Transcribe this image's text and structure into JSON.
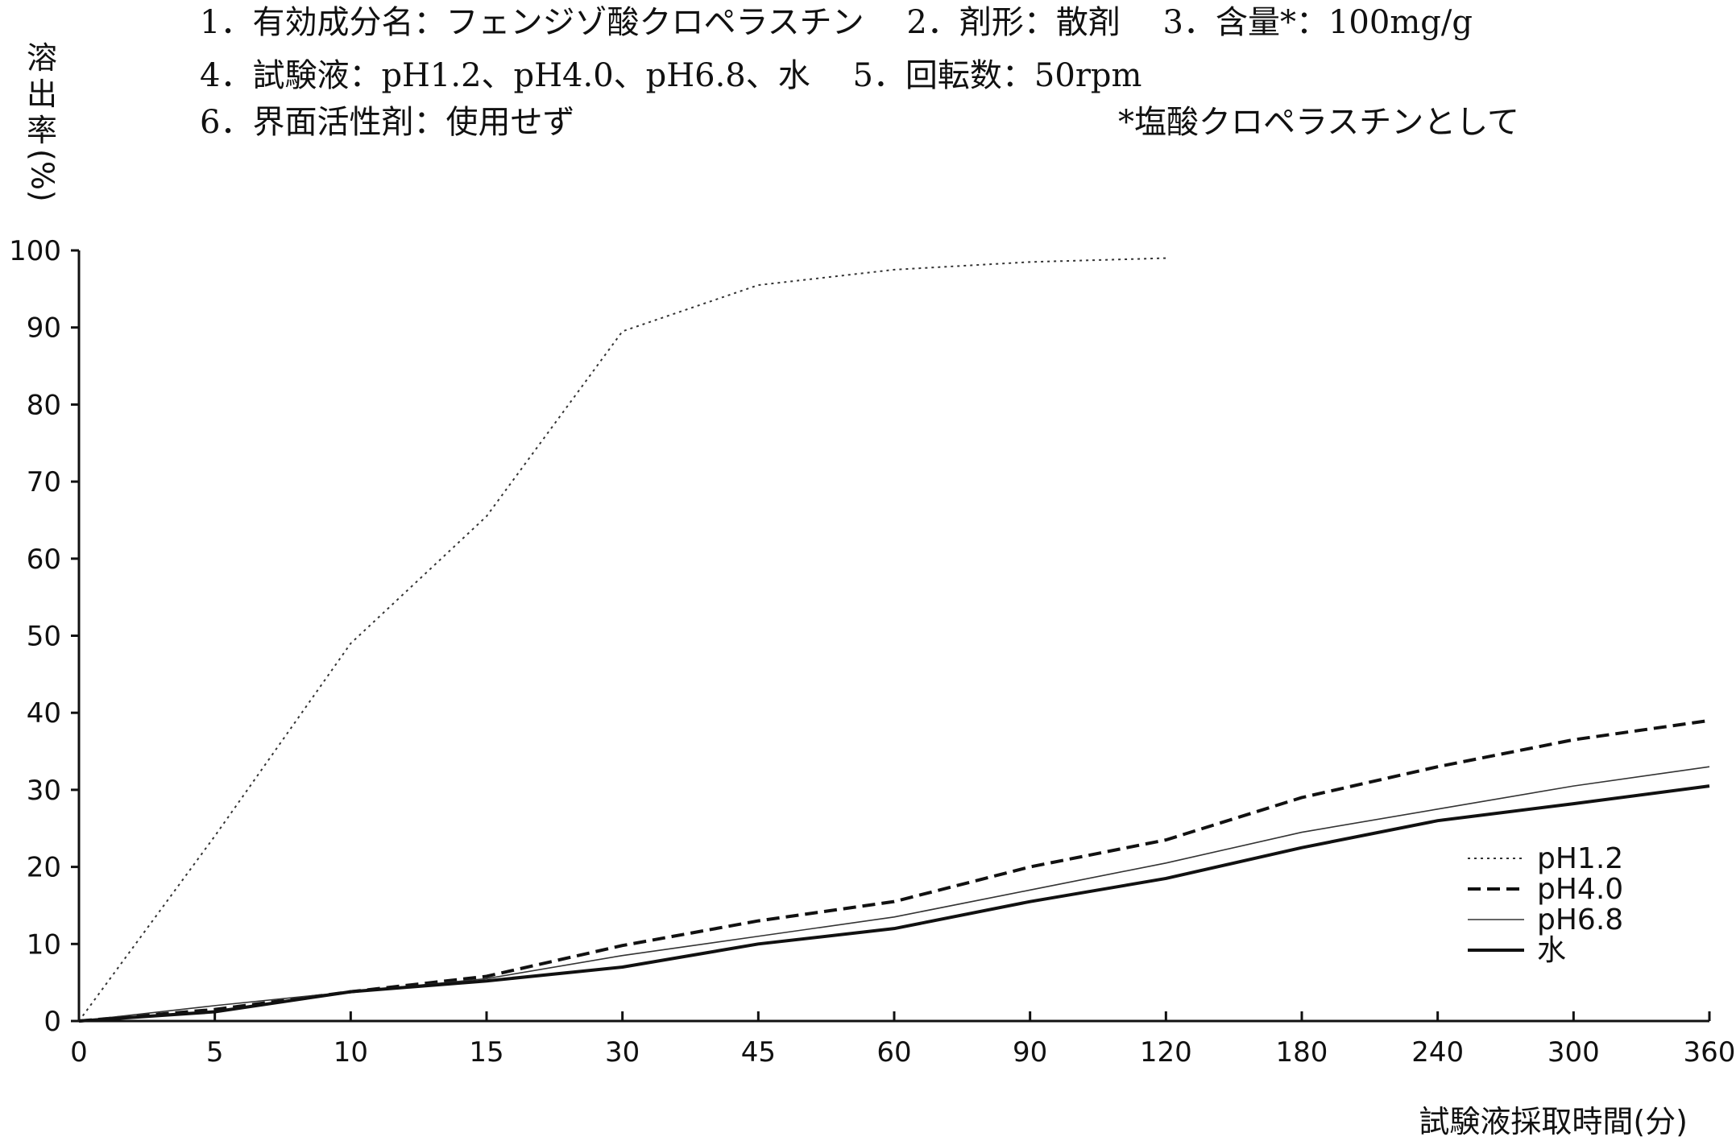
{
  "header": {
    "line1": "1．有効成分名：フェンジゾ酸クロペラスチン　 2．剤形：散剤　 3．含量*：100mg/g",
    "line2": "4．試験液：pH1.2、pH4.0、pH6.8、水　 5．回転数：50rpm",
    "line3": "6．界面活性剤：使用せず",
    "note": "*塩酸クロペラスチンとして"
  },
  "chart_data": {
    "type": "line",
    "xlabel": "試験液採取時間(分)",
    "ylabel": "溶出率(%)",
    "ylabel_chars": [
      "溶",
      "出",
      "率",
      "(%)"
    ],
    "categories": [
      "0",
      "5",
      "10",
      "15",
      "30",
      "45",
      "60",
      "90",
      "120",
      "180",
      "240",
      "300",
      "360"
    ],
    "yticks": [
      "0",
      "10",
      "20",
      "30",
      "40",
      "50",
      "60",
      "70",
      "80",
      "90",
      "100"
    ],
    "ylim": [
      0,
      100
    ],
    "legend_position": "bottom-right",
    "series": [
      {
        "name": "pH1.2",
        "style": "dotted",
        "color": "#333333",
        "values": [
          0,
          24,
          49,
          65.5,
          89.5,
          95.5,
          97.5,
          98.5,
          99,
          null,
          null,
          null,
          null
        ]
      },
      {
        "name": "pH4.0",
        "style": "dashed",
        "color": "#111111",
        "values": [
          0,
          1.5,
          3.8,
          5.8,
          9.8,
          13,
          15.5,
          20,
          23.5,
          29,
          33,
          36.5,
          39
        ]
      },
      {
        "name": "pH6.8",
        "style": "thin",
        "color": "#333333",
        "values": [
          0,
          2,
          3.8,
          5.5,
          8.5,
          11,
          13.5,
          17,
          20.5,
          24.5,
          27.5,
          30.5,
          33
        ]
      },
      {
        "name": "水",
        "style": "thick",
        "color": "#111111",
        "values": [
          0,
          1.2,
          3.8,
          5.2,
          7,
          10,
          12,
          15.5,
          18.5,
          22.5,
          26,
          28.2,
          30.5
        ]
      }
    ]
  }
}
